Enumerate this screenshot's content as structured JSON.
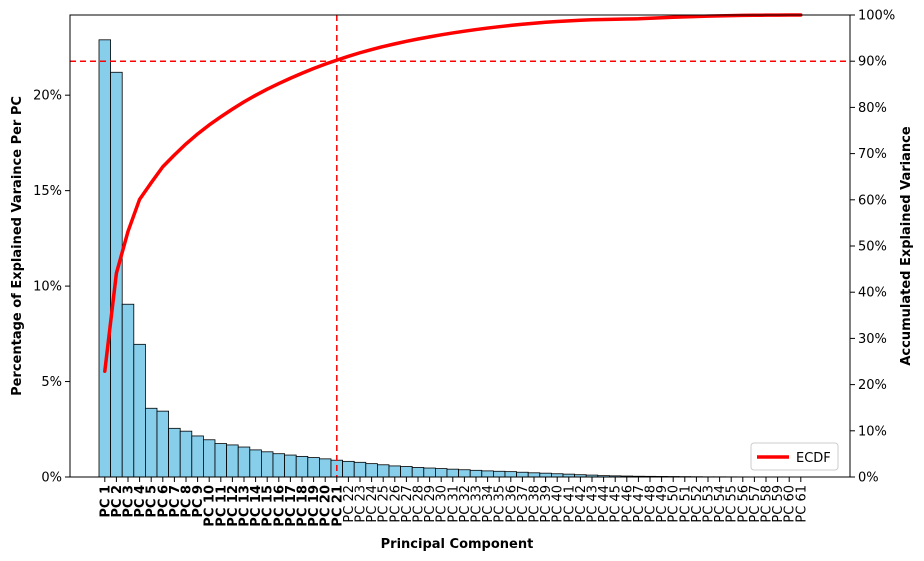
{
  "chart_data": {
    "type": "bar",
    "xlabel": "Principal Component",
    "ylabel_left": "Percentage of Explained Varaince Per PC",
    "ylabel_right": "Accumulated Explained Variance",
    "ylim_left": [
      0,
      24.2
    ],
    "ylim_right": [
      0,
      100
    ],
    "yticks_left": [
      "0%",
      "5%",
      "10%",
      "15%",
      "20%"
    ],
    "yticks_left_values": [
      0,
      5,
      10,
      15,
      20
    ],
    "yticks_right": [
      "0%",
      "10%",
      "20%",
      "30%",
      "40%",
      "50%",
      "60%",
      "70%",
      "80%",
      "90%",
      "100%"
    ],
    "yticks_right_values": [
      0,
      10,
      20,
      30,
      40,
      50,
      60,
      70,
      80,
      90,
      100
    ],
    "categories": [
      "PC 1",
      "PC 2",
      "PC 3",
      "PC 4",
      "PC 5",
      "PC 6",
      "PC 7",
      "PC 8",
      "PC 9",
      "PC 10",
      "PC 11",
      "PC 12",
      "PC 13",
      "PC 14",
      "PC 15",
      "PC 16",
      "PC 17",
      "PC 18",
      "PC 19",
      "PC 20",
      "PC 21",
      "PC 22",
      "PC 23",
      "PC 24",
      "PC 25",
      "PC 26",
      "PC 27",
      "PC 28",
      "PC 29",
      "PC 30",
      "PC 31",
      "PC 32",
      "PC 33",
      "PC 34",
      "PC 35",
      "PC 36",
      "PC 37",
      "PC 38",
      "PC 39",
      "PC 40",
      "PC 41",
      "PC 42",
      "PC 43",
      "PC 44",
      "PC 45",
      "PC 46",
      "PC 47",
      "PC 48",
      "PC 49",
      "PC 50",
      "PC 51",
      "PC 52",
      "PC 53",
      "PC 54",
      "PC 55",
      "PC 56",
      "PC 57",
      "PC 58",
      "PC 59",
      "PC 60",
      "PC 61"
    ],
    "highlighted_count": 21,
    "series": [
      {
        "kind": "bar",
        "color": "#87ceeb",
        "values": [
          22.9,
          21.2,
          9.05,
          6.95,
          3.6,
          3.45,
          2.55,
          2.4,
          2.15,
          1.95,
          1.75,
          1.68,
          1.57,
          1.42,
          1.32,
          1.22,
          1.15,
          1.08,
          1.02,
          0.95,
          0.88,
          0.82,
          0.77,
          0.7,
          0.64,
          0.58,
          0.55,
          0.5,
          0.47,
          0.44,
          0.41,
          0.38,
          0.35,
          0.32,
          0.3,
          0.28,
          0.25,
          0.22,
          0.2,
          0.17,
          0.15,
          0.12,
          0.1,
          0.07,
          0.06,
          0.05,
          0.04,
          0.035,
          0.03,
          0.025,
          0.02,
          0.015,
          0.01,
          0.01,
          0.008,
          0.006,
          0.004,
          0.003,
          0.002,
          0.001,
          0.001
        ]
      },
      {
        "kind": "line",
        "name": "ECDF",
        "color": "#ff0000",
        "values": [
          22.9,
          44.1,
          53.15,
          60.1,
          63.7,
          67.15,
          69.7,
          72.1,
          74.25,
          76.2,
          77.95,
          79.63,
          81.2,
          82.62,
          83.94,
          85.16,
          86.31,
          87.39,
          88.41,
          89.36,
          90.24,
          91.06,
          91.83,
          92.53,
          93.17,
          93.75,
          94.3,
          94.8,
          95.27,
          95.71,
          96.12,
          96.5,
          96.85,
          97.17,
          97.47,
          97.75,
          98.0,
          98.22,
          98.42,
          98.59,
          98.74,
          98.86,
          98.96,
          99.03,
          99.09,
          99.14,
          99.18,
          99.3,
          99.4,
          99.5,
          99.6,
          99.68,
          99.75,
          99.82,
          99.87,
          99.91,
          99.94,
          99.96,
          99.98,
          99.99,
          100.0
        ]
      }
    ],
    "reference_lines": {
      "vertical_at_category": "PC 21",
      "horizontal_at_right_value": 90,
      "color": "#ff0000"
    },
    "legend": {
      "entries": [
        "ECDF"
      ],
      "placement": "bottom-right"
    },
    "grid": false
  }
}
